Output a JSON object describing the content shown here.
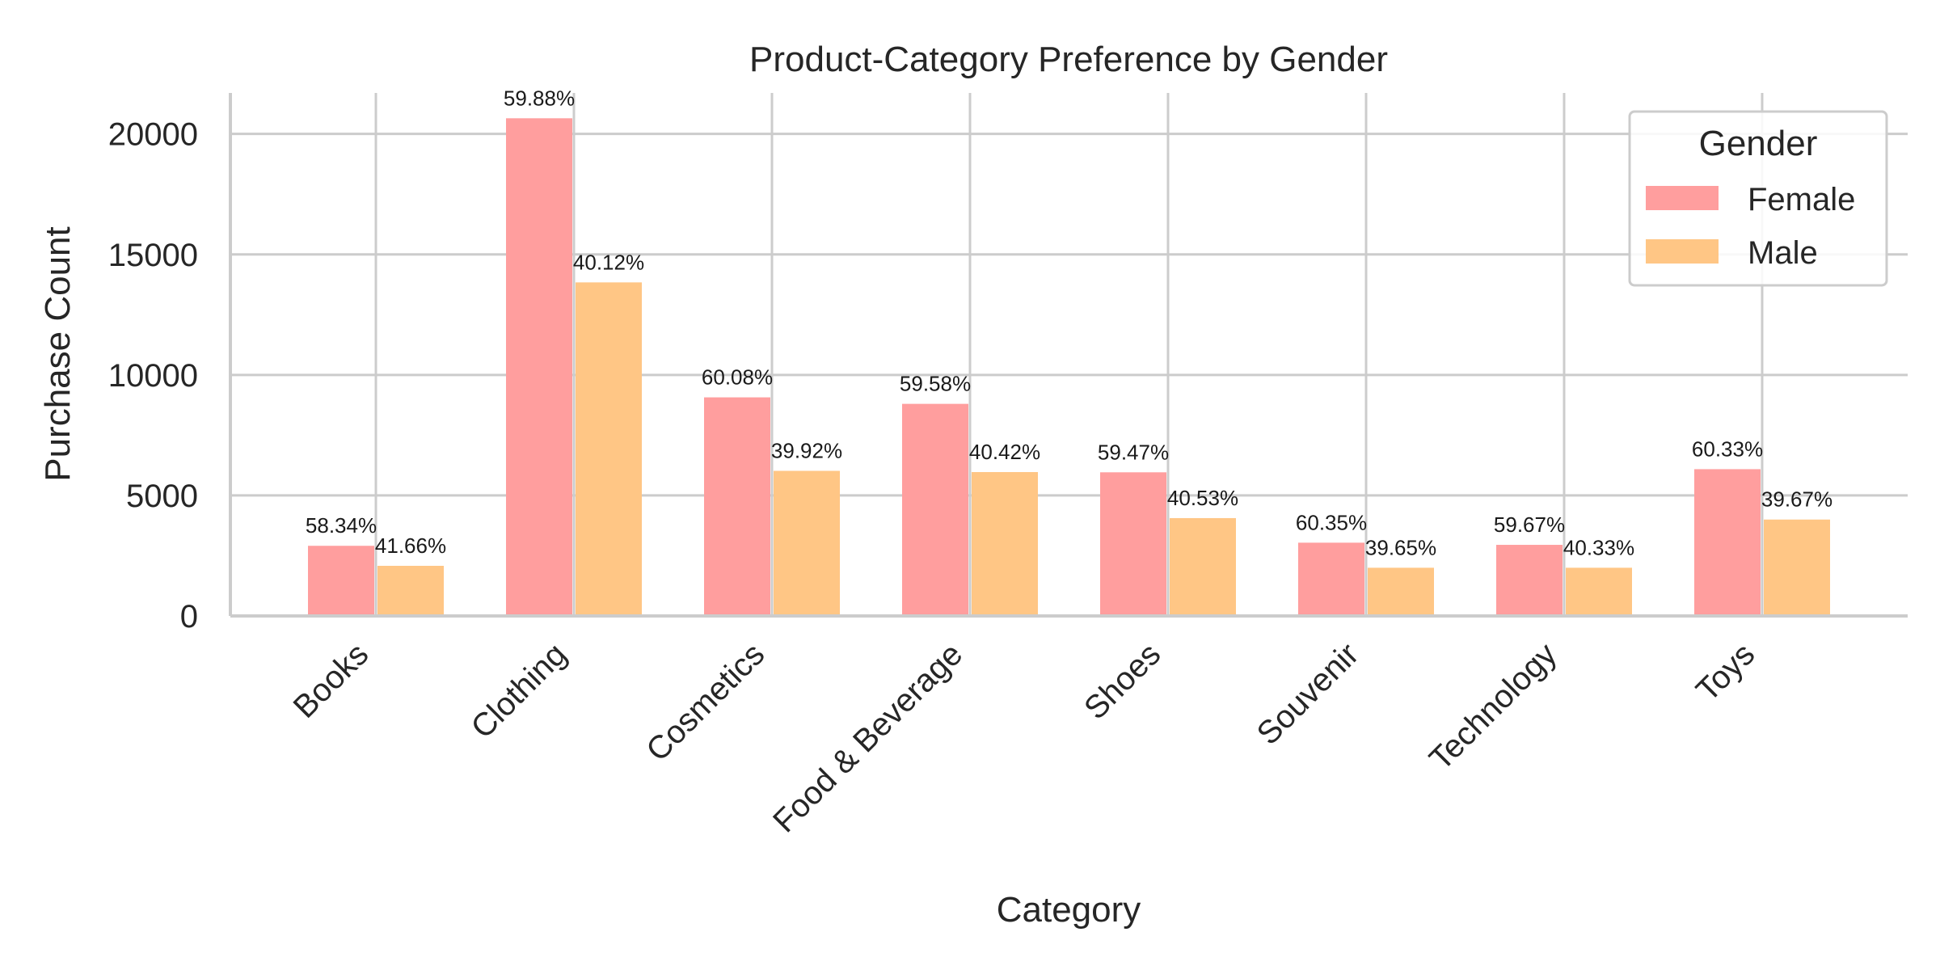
{
  "chart_data": {
    "type": "bar",
    "title": "Product-Category Preference by Gender",
    "xlabel": "Category",
    "ylabel": "Purchase Count",
    "ylim": [
      0,
      21700
    ],
    "yticks": [
      0,
      5000,
      10000,
      15000,
      20000
    ],
    "ytick_labels": [
      "0",
      "5000",
      "10000",
      "15000",
      "20000"
    ],
    "grid": true,
    "categories": [
      "Books",
      "Clothing",
      "Cosmetics",
      "Food & Beverage",
      "Shoes",
      "Souvenir",
      "Technology",
      "Toys"
    ],
    "series": [
      {
        "name": "Female",
        "color": "#ff9e9e",
        "values": [
          2910,
          20650,
          9070,
          8800,
          5960,
          3040,
          2950,
          6090
        ],
        "labels": [
          "58.34%",
          "59.88%",
          "60.08%",
          "59.58%",
          "59.47%",
          "60.35%",
          "59.67%",
          "60.33%"
        ]
      },
      {
        "name": "Male",
        "color": "#ffc685",
        "values": [
          2080,
          13840,
          6020,
          5970,
          4060,
          2000,
          2000,
          4000
        ],
        "labels": [
          "41.66%",
          "40.12%",
          "39.92%",
          "40.42%",
          "40.53%",
          "39.65%",
          "40.33%",
          "39.67%"
        ]
      }
    ],
    "legend": {
      "title": "Gender",
      "position": "top-right"
    }
  }
}
